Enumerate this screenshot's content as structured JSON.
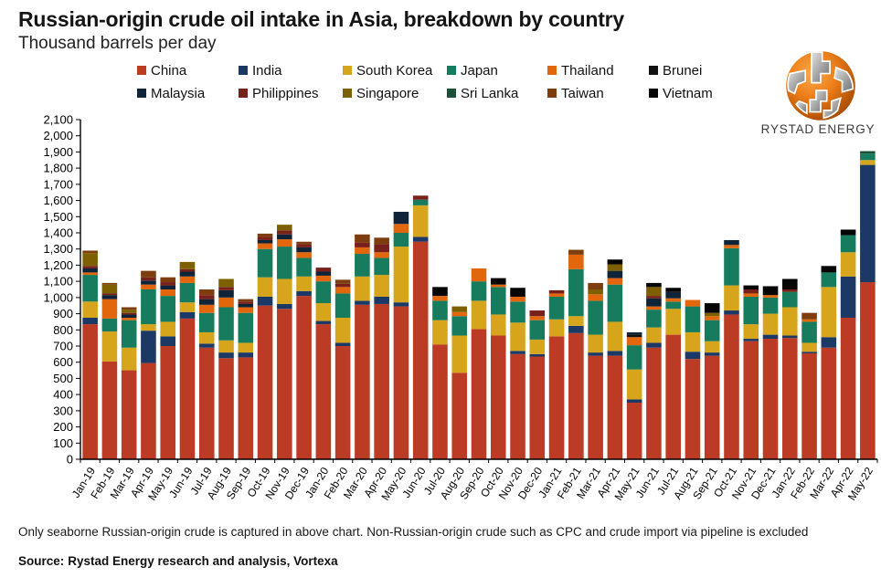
{
  "header": {
    "title": "Russian-origin crude oil intake in Asia, breakdown by country",
    "subtitle": "Thousand barrels per day"
  },
  "logo": {
    "text": "RYSTAD ENERGY",
    "orange": "#E8761A",
    "grey": "#9a9a9a"
  },
  "footer": {
    "note": "Only seaborne Russian-origin crude is captured in above chart. Non-Russian-origin crude such as CPC and crude import via pipeline is excluded",
    "source_label": "Source:",
    "source_text": "Rystad Energy research and analysis,  Vortexa"
  },
  "chart_data": {
    "type": "bar",
    "stacked": true,
    "title": "Russian-origin crude oil intake in Asia, breakdown by country",
    "ylabel": "Thousand barrels per day",
    "xlabel": "",
    "ylim": [
      0,
      2100
    ],
    "ytick_step": 100,
    "grid": false,
    "legend_position": "top",
    "categories": [
      "Jan-19",
      "Feb-19",
      "Mar-19",
      "Apr-19",
      "May-19",
      "Jun-19",
      "Jul-19",
      "Aug-19",
      "Sep-19",
      "Oct-19",
      "Nov-19",
      "Dec-19",
      "Jan-20",
      "Feb-20",
      "Mar-20",
      "Apr-20",
      "May-20",
      "Jun-20",
      "Jul-20",
      "Aug-20",
      "Sep-20",
      "Oct-20",
      "Nov-20",
      "Dec-20",
      "Jan-21",
      "Feb-21",
      "Mar-21",
      "Apr-21",
      "May-21",
      "Jun-21",
      "Jul-21",
      "Aug-21",
      "Sep-21",
      "Oct-21",
      "Nov-21",
      "Dec-21",
      "Jan-22",
      "Feb-22",
      "Mar-22",
      "Apr-22",
      "May-22"
    ],
    "series": [
      {
        "name": "China",
        "color": "#BC3B24",
        "values": [
          835,
          605,
          550,
          595,
          700,
          870,
          690,
          625,
          630,
          950,
          930,
          1010,
          835,
          700,
          955,
          960,
          945,
          1345,
          710,
          535,
          805,
          765,
          650,
          635,
          760,
          780,
          640,
          640,
          350,
          690,
          770,
          620,
          640,
          895,
          730,
          745,
          750,
          655,
          690,
          875,
          1095
        ]
      },
      {
        "name": "India",
        "color": "#1C3966",
        "values": [
          40,
          0,
          0,
          200,
          60,
          40,
          25,
          35,
          30,
          55,
          30,
          30,
          20,
          20,
          25,
          45,
          25,
          30,
          0,
          0,
          0,
          0,
          20,
          15,
          0,
          45,
          20,
          30,
          20,
          30,
          0,
          45,
          20,
          25,
          15,
          25,
          15,
          10,
          65,
          255,
          725
        ]
      },
      {
        "name": "South Korea",
        "color": "#D6A51B",
        "values": [
          100,
          185,
          140,
          40,
          90,
          60,
          70,
          75,
          60,
          120,
          155,
          90,
          110,
          155,
          150,
          135,
          345,
          195,
          150,
          230,
          175,
          130,
          175,
          90,
          105,
          60,
          110,
          180,
          185,
          95,
          160,
          120,
          70,
          155,
          90,
          130,
          175,
          55,
          310,
          150,
          30
        ]
      },
      {
        "name": "Japan",
        "color": "#177B5D",
        "values": [
          165,
          80,
          170,
          215,
          160,
          120,
          120,
          205,
          185,
          175,
          200,
          115,
          135,
          150,
          140,
          105,
          85,
          35,
          120,
          120,
          120,
          170,
          130,
          120,
          140,
          290,
          210,
          230,
          150,
          110,
          45,
          160,
          130,
          230,
          170,
          100,
          95,
          130,
          90,
          105,
          40
        ]
      },
      {
        "name": "Thailand",
        "color": "#E2660C",
        "values": [
          15,
          120,
          15,
          30,
          40,
          40,
          50,
          60,
          35,
          35,
          45,
          35,
          35,
          40,
          40,
          35,
          55,
          0,
          30,
          25,
          80,
          15,
          30,
          25,
          20,
          90,
          40,
          40,
          50,
          20,
          20,
          40,
          25,
          20,
          20,
          15,
          0,
          15,
          0,
          0,
          0
        ]
      },
      {
        "name": "Brunei",
        "color": "#121212",
        "values": [
          0,
          0,
          0,
          0,
          0,
          0,
          0,
          0,
          0,
          0,
          0,
          0,
          0,
          0,
          0,
          0,
          0,
          0,
          0,
          0,
          0,
          0,
          0,
          0,
          0,
          0,
          0,
          0,
          15,
          0,
          0,
          0,
          0,
          0,
          0,
          0,
          0,
          0,
          0,
          0,
          0
        ]
      },
      {
        "name": "Malaysia",
        "color": "#0F2438",
        "values": [
          25,
          25,
          20,
          25,
          25,
          30,
          35,
          45,
          20,
          20,
          30,
          30,
          25,
          0,
          0,
          0,
          75,
          0,
          0,
          0,
          0,
          0,
          0,
          0,
          0,
          0,
          0,
          45,
          15,
          50,
          40,
          0,
          0,
          30,
          0,
          0,
          0,
          0,
          0,
          0,
          0
        ]
      },
      {
        "name": "Philippines",
        "color": "#77211A",
        "values": [
          15,
          10,
          10,
          20,
          20,
          15,
          25,
          20,
          15,
          20,
          25,
          20,
          25,
          20,
          30,
          50,
          0,
          25,
          0,
          0,
          0,
          0,
          0,
          35,
          20,
          0,
          0,
          0,
          0,
          15,
          0,
          0,
          0,
          0,
          25,
          0,
          15,
          0,
          0,
          0,
          0
        ]
      },
      {
        "name": "Singapore",
        "color": "#7F6000",
        "values": [
          80,
          55,
          20,
          0,
          0,
          45,
          0,
          50,
          0,
          0,
          35,
          0,
          0,
          0,
          0,
          0,
          0,
          0,
          0,
          35,
          0,
          0,
          0,
          0,
          0,
          0,
          30,
          40,
          0,
          55,
          0,
          0,
          20,
          0,
          0,
          0,
          0,
          0,
          0,
          0,
          0
        ]
      },
      {
        "name": "Sri Lanka",
        "color": "#1B5138",
        "values": [
          0,
          0,
          0,
          0,
          0,
          0,
          0,
          0,
          0,
          0,
          0,
          0,
          0,
          0,
          0,
          0,
          0,
          0,
          0,
          0,
          0,
          0,
          0,
          0,
          0,
          0,
          0,
          0,
          0,
          0,
          0,
          0,
          0,
          0,
          0,
          0,
          0,
          0,
          0,
          0,
          15
        ]
      },
      {
        "name": "Taiwan",
        "color": "#7E3D0E",
        "values": [
          15,
          10,
          15,
          40,
          30,
          0,
          35,
          0,
          15,
          20,
          0,
          15,
          0,
          25,
          50,
          40,
          0,
          0,
          0,
          0,
          0,
          0,
          0,
          0,
          0,
          30,
          40,
          0,
          0,
          0,
          0,
          0,
          0,
          0,
          0,
          0,
          0,
          40,
          0,
          0,
          0
        ]
      },
      {
        "name": "Vietnam",
        "color": "#060606",
        "values": [
          0,
          0,
          0,
          0,
          0,
          0,
          0,
          0,
          0,
          0,
          0,
          0,
          0,
          0,
          0,
          0,
          0,
          0,
          55,
          0,
          0,
          40,
          55,
          0,
          0,
          0,
          0,
          30,
          0,
          25,
          25,
          0,
          60,
          0,
          25,
          55,
          65,
          0,
          40,
          35,
          0
        ]
      }
    ]
  }
}
